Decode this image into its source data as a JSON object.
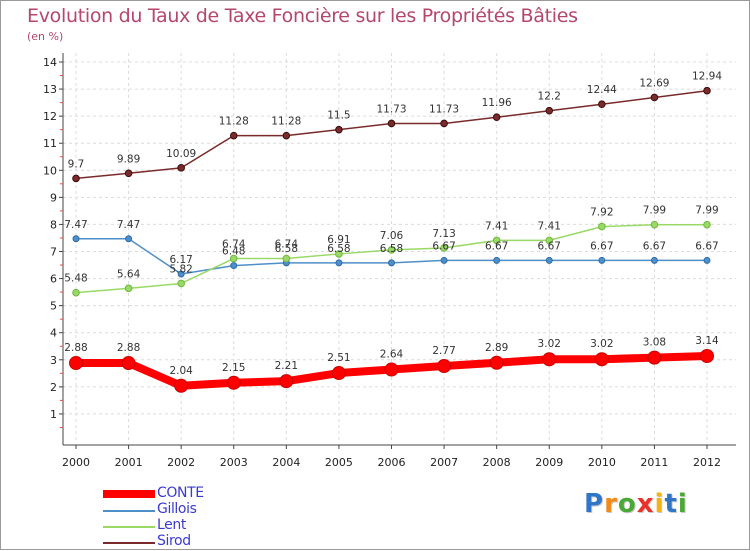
{
  "title": "Evolution du Taux de Taxe Foncière sur les Propriétés Bâties",
  "subtitle": "(en %)",
  "brand": {
    "letters": [
      "P",
      "r",
      "o",
      "x",
      "i",
      "t",
      "i"
    ],
    "colors": [
      "#2f76c7",
      "#f28a1a",
      "#4aa934",
      "#e8332a",
      "#f2b31a",
      "#2f76c7",
      "#4aa934"
    ]
  },
  "chart_data": {
    "type": "line",
    "x": [
      "2000",
      "2001",
      "2002",
      "2003",
      "2004",
      "2005",
      "2006",
      "2007",
      "2008",
      "2009",
      "2010",
      "2011",
      "2012"
    ],
    "ylim": [
      0,
      14
    ],
    "yticks": [
      "1",
      "2",
      "3",
      "4",
      "5",
      "6",
      "7",
      "8",
      "9",
      "10",
      "11",
      "12",
      "13",
      "14"
    ],
    "grid": true,
    "legend": "bottom-left",
    "series": [
      {
        "name": "CONTE",
        "color": "#ff0000",
        "values": [
          2.88,
          2.88,
          2.04,
          2.15,
          2.21,
          2.51,
          2.64,
          2.77,
          2.89,
          3.02,
          3.02,
          3.08,
          3.14
        ],
        "labels": [
          "2.88",
          "2.88",
          "2.04",
          "2.15",
          "2.21",
          "2.51",
          "2.64",
          "2.77",
          "2.89",
          "3.02",
          "3.02",
          "3.08",
          "3.14"
        ]
      },
      {
        "name": "Gillois",
        "color": "#4f8fc9",
        "values": [
          7.47,
          7.47,
          6.17,
          6.48,
          6.58,
          6.58,
          6.58,
          6.67,
          6.67,
          6.67,
          6.67,
          6.67,
          6.67
        ],
        "labels": [
          "7.47",
          "7.47",
          "6.17",
          "6.48",
          "6.58",
          "6.58",
          "6.58",
          "6.67",
          "6.67",
          "6.67",
          "6.67",
          "6.67",
          "6.67"
        ]
      },
      {
        "name": "Lent",
        "color": "#99d966",
        "values": [
          5.48,
          5.64,
          5.82,
          6.74,
          6.74,
          6.91,
          7.06,
          7.13,
          7.41,
          7.41,
          7.92,
          7.99,
          7.99
        ],
        "labels": [
          "5.48",
          "5.64",
          "5.82",
          "6.74",
          "6.74",
          "6.91",
          "7.06",
          "7.13",
          "7.41",
          "7.41",
          "7.92",
          "7.99",
          "7.99"
        ]
      },
      {
        "name": "Sirod",
        "color": "#7a2a2a",
        "values": [
          9.7,
          9.89,
          10.09,
          11.28,
          11.28,
          11.5,
          11.73,
          11.73,
          11.96,
          12.2,
          12.44,
          12.69,
          12.94
        ],
        "labels": [
          "9.7",
          "9.89",
          "10.09",
          "11.28",
          "11.28",
          "11.5",
          "11.73",
          "11.73",
          "11.96",
          "12.2",
          "12.44",
          "12.69",
          "12.94"
        ]
      }
    ]
  }
}
